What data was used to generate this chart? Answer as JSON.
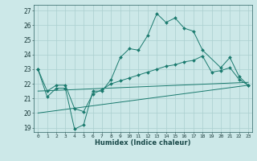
{
  "xlabel": "Humidex (Indice chaleur)",
  "bg_color": "#cce8e8",
  "line_color": "#1a7a6e",
  "grid_color": "#aacfcf",
  "xlim": [
    -0.5,
    23.4
  ],
  "ylim": [
    18.7,
    27.4
  ],
  "yticks": [
    19,
    20,
    21,
    22,
    23,
    24,
    25,
    26,
    27
  ],
  "xticks": [
    0,
    1,
    2,
    3,
    4,
    5,
    6,
    7,
    8,
    9,
    10,
    11,
    12,
    13,
    14,
    15,
    16,
    17,
    18,
    19,
    20,
    21,
    22,
    23
  ],
  "series": [
    {
      "x": [
        0,
        1,
        2,
        3,
        4,
        5,
        6,
        7,
        8,
        9,
        10,
        11,
        12,
        13,
        14,
        15,
        16,
        17,
        18,
        20,
        21,
        22,
        23
      ],
      "y": [
        23.0,
        21.1,
        21.7,
        21.7,
        18.9,
        19.2,
        21.5,
        21.5,
        22.3,
        23.8,
        24.4,
        24.3,
        25.3,
        26.8,
        26.2,
        26.5,
        25.8,
        25.6,
        24.3,
        23.1,
        23.8,
        22.5,
        21.9
      ],
      "has_markers": true
    },
    {
      "x": [
        0,
        1,
        2,
        3,
        4,
        5,
        6,
        7,
        8,
        9,
        10,
        11,
        12,
        13,
        14,
        15,
        16,
        17,
        18,
        19,
        20,
        21,
        22,
        23
      ],
      "y": [
        23.0,
        21.5,
        21.9,
        21.9,
        20.3,
        20.1,
        21.3,
        21.6,
        22.0,
        22.2,
        22.4,
        22.6,
        22.8,
        23.0,
        23.2,
        23.3,
        23.5,
        23.6,
        23.9,
        22.8,
        22.9,
        23.1,
        22.3,
        21.9
      ],
      "has_markers": true
    },
    {
      "x": [
        0,
        23
      ],
      "y": [
        21.5,
        22.1
      ],
      "has_markers": false
    },
    {
      "x": [
        0,
        23
      ],
      "y": [
        20.0,
        21.9
      ],
      "has_markers": false
    }
  ]
}
